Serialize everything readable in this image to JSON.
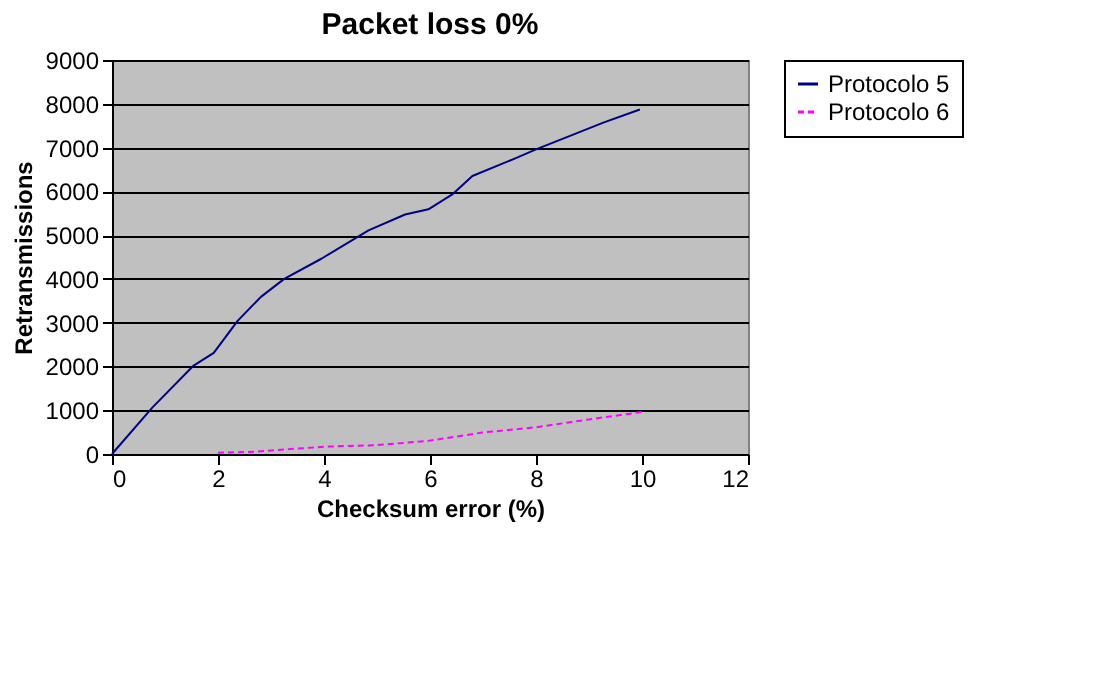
{
  "chart_data": {
    "type": "line",
    "title": "Packet loss 0%",
    "xlabel": "Checksum error (%)",
    "ylabel": "Retransmissions",
    "xlim": [
      0,
      12
    ],
    "xticks": [
      0,
      2,
      4,
      6,
      8,
      10,
      12
    ],
    "ylim": [
      0,
      9000
    ],
    "yticks": [
      0,
      1000,
      2000,
      3000,
      4000,
      5000,
      6000,
      7000,
      8000,
      9000
    ],
    "grid": "y",
    "legend": "right",
    "marker": "none",
    "series": [
      {
        "name": "Protocolo 5",
        "color": "#000080",
        "line_style": "solid",
        "x": [
          0,
          0.76,
          1.54,
          1.92,
          2.37,
          2.81,
          3.25,
          3.95,
          4.84,
          5.53,
          5.97,
          6.42,
          6.8,
          7.62,
          8.0,
          8.63,
          9.27,
          9.96
        ],
        "values": [
          0,
          1060,
          2020,
          2310,
          3040,
          3590,
          4000,
          4460,
          5110,
          5470,
          5590,
          5930,
          6350,
          6760,
          6960,
          7260,
          7570,
          7870
        ]
      },
      {
        "name": "Protocolo 6",
        "color": "#ff00ff",
        "line_style": "dashed",
        "x": [
          2,
          2.68,
          3.44,
          4.08,
          4.96,
          5.97,
          6.99,
          8.0,
          9.0,
          10.0
        ],
        "values": [
          30,
          50,
          120,
          170,
          200,
          300,
          490,
          610,
          790,
          960
        ]
      }
    ]
  }
}
